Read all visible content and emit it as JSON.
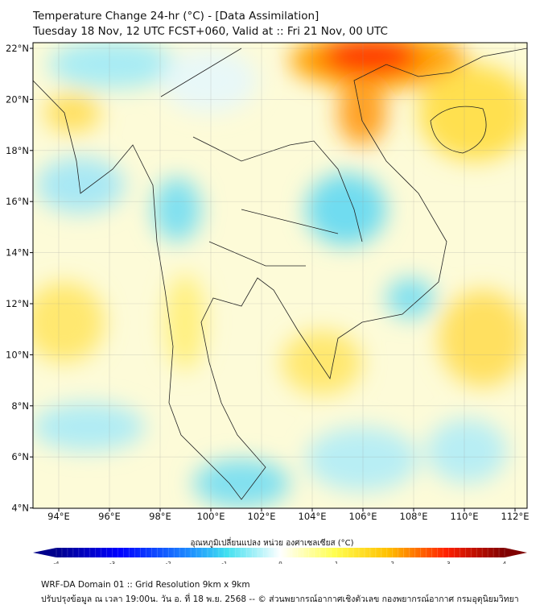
{
  "header": {
    "title": "Temperature Change 24-hr (°C) - [Data Assimilation]",
    "subtitle": "Tuesday 18 Nov, 12 UTC FCST+060, Valid at :: Fri 21 Nov, 00 UTC"
  },
  "map": {
    "lat_labels": [
      "22°N",
      "20°N",
      "18°N",
      "16°N",
      "14°N",
      "12°N",
      "10°N",
      "8°N",
      "6°N",
      "4°N"
    ],
    "lon_labels": [
      "94°E",
      "96°E",
      "98°E",
      "100°E",
      "102°E",
      "104°E",
      "106°E",
      "108°E",
      "110°E",
      "112°E"
    ]
  },
  "colorbar": {
    "label": "อุณหภูมิเปลี่ยนแปลง หน่วย องศาเซลเซียส (°C)",
    "ticks": [
      "-4",
      "-3",
      "-2",
      "-1",
      "0",
      "1",
      "2",
      "3",
      "4"
    ],
    "range": [
      -4,
      4
    ],
    "colors": [
      "#00008b",
      "#0000ff",
      "#1e90ff",
      "#40e0f0",
      "#ffffff",
      "#ffff60",
      "#ffc000",
      "#ff2000",
      "#7f0000"
    ]
  },
  "footer": {
    "line1": "WRF-DA Domain 01 :: Grid Resolution 9km x 9km",
    "line2": "ปรับปรุงข้อมูล ณ เวลา 19:00น. วัน อ. ที่ 18 พ.ย. 2568 -- © ส่วนพยากรณ์อากาศเชิงตัวเลข กองพยากรณ์อากาศ กรมอุตุนิยมวิทยา"
  }
}
